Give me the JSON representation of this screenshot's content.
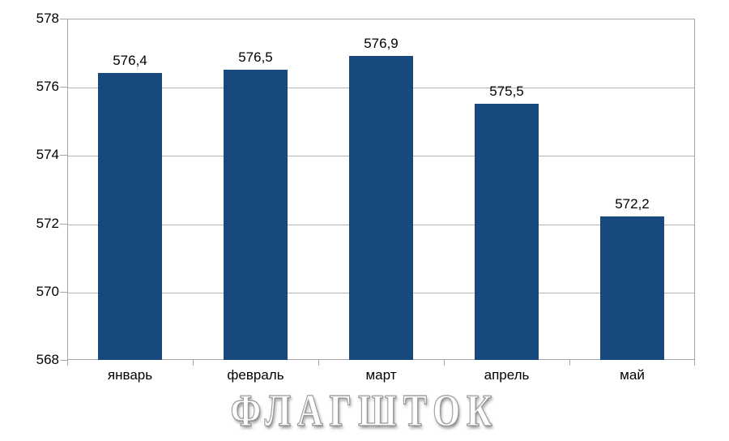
{
  "chart_data": {
    "type": "bar",
    "categories": [
      "январь",
      "февраль",
      "март",
      "апрель",
      "май"
    ],
    "values": [
      576.4,
      576.5,
      576.9,
      575.5,
      572.2
    ],
    "value_labels": [
      "576,4",
      "576,5",
      "576,9",
      "575,5",
      "572,2"
    ],
    "title": "",
    "xlabel": "",
    "ylabel": "",
    "ylim": [
      568,
      578
    ],
    "ytick_step": 2,
    "ytick_labels": [
      "568",
      "570",
      "572",
      "574",
      "576",
      "578"
    ],
    "grid": "horizontal",
    "legend_position": "none",
    "bar_color": "#17497e",
    "grid_color": "#b4b4b4",
    "axis_color": "#a6a6a6",
    "text_color": "#000000"
  },
  "watermark": {
    "text": "ФЛАГШТОК"
  }
}
